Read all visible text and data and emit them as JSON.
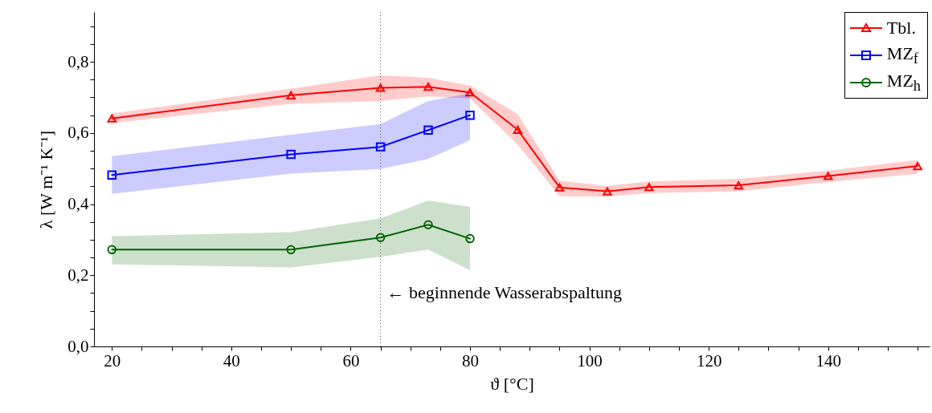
{
  "chart_data": {
    "type": "line",
    "xlabel": "ϑ [°C]",
    "ylabel": "λ [W m⁻¹ K⁻¹]",
    "xlim": [
      17,
      157
    ],
    "ylim": [
      0,
      0.94
    ],
    "xticks": [
      20,
      {
        "value": 25,
        "label": null
      },
      {
        "value": 30,
        "label": null
      },
      {
        "value": 35,
        "label": null
      },
      40,
      {
        "value": 45,
        "label": null
      },
      {
        "value": 50,
        "label": null
      },
      {
        "value": 55,
        "label": null
      },
      60,
      {
        "value": 65,
        "label": null
      },
      {
        "value": 70,
        "label": null
      },
      {
        "value": 75,
        "label": null
      },
      80,
      {
        "value": 85,
        "label": null
      },
      {
        "value": 90,
        "label": null
      },
      {
        "value": 95,
        "label": null
      },
      100,
      {
        "value": 105,
        "label": null
      },
      {
        "value": 110,
        "label": null
      },
      {
        "value": 115,
        "label": null
      },
      120,
      {
        "value": 125,
        "label": null
      },
      {
        "value": 130,
        "label": null
      },
      {
        "value": 135,
        "label": null
      },
      140,
      {
        "value": 145,
        "label": null
      },
      {
        "value": 150,
        "label": null
      },
      {
        "value": 155,
        "label": null
      }
    ],
    "yticks": [
      {
        "value": 0,
        "label": "0,0"
      },
      {
        "value": 0.05,
        "label": null
      },
      {
        "value": 0.1,
        "label": null
      },
      {
        "value": 0.15,
        "label": null
      },
      {
        "value": 0.2,
        "label": "0,2"
      },
      {
        "value": 0.25,
        "label": null
      },
      {
        "value": 0.3,
        "label": null
      },
      {
        "value": 0.35,
        "label": null
      },
      {
        "value": 0.4,
        "label": "0,4"
      },
      {
        "value": 0.45,
        "label": null
      },
      {
        "value": 0.5,
        "label": null
      },
      {
        "value": 0.55,
        "label": null
      },
      {
        "value": 0.6,
        "label": "0,6"
      },
      {
        "value": 0.65,
        "label": null
      },
      {
        "value": 0.7,
        "label": null
      },
      {
        "value": 0.75,
        "label": null
      },
      {
        "value": 0.8,
        "label": "0,8"
      },
      {
        "value": 0.85,
        "label": null
      },
      {
        "value": 0.9,
        "label": null
      }
    ],
    "grid": false,
    "legend": "top right",
    "line_style": "solid",
    "series": [
      {
        "name": "Tbl.",
        "color": "#ff0000",
        "marker": "triangle",
        "x": [
          20,
          50,
          65,
          73,
          80,
          88,
          95,
          103,
          110,
          125,
          140,
          155
        ],
        "values": [
          0.641,
          0.706,
          0.727,
          0.73,
          0.714,
          0.609,
          0.447,
          0.436,
          0.448,
          0.453,
          0.479,
          0.507
        ],
        "lower": [
          0.628,
          0.682,
          0.69,
          0.703,
          0.697,
          0.567,
          0.422,
          0.421,
          0.431,
          0.436,
          0.462,
          0.485
        ],
        "upper": [
          0.655,
          0.725,
          0.762,
          0.755,
          0.733,
          0.653,
          0.466,
          0.451,
          0.464,
          0.471,
          0.494,
          0.524
        ]
      },
      {
        "name": "MZ$_{f}$",
        "color": "#0000ff",
        "marker": "square",
        "x": [
          20,
          50,
          65,
          73,
          80
        ],
        "values": [
          0.482,
          0.54,
          0.561,
          0.608,
          0.65
        ],
        "lower": [
          0.429,
          0.486,
          0.499,
          0.527,
          0.58
        ],
        "upper": [
          0.535,
          0.595,
          0.625,
          0.69,
          0.712
        ]
      },
      {
        "name": "MZ$_{h}$",
        "color": "#006400",
        "marker": "circle",
        "x": [
          20,
          50,
          65,
          73,
          80
        ],
        "values": [
          0.272,
          0.272,
          0.306,
          0.342,
          0.303
        ],
        "lower": [
          0.231,
          0.222,
          0.252,
          0.272,
          0.214
        ],
        "upper": [
          0.31,
          0.321,
          0.36,
          0.41,
          0.392
        ]
      }
    ],
    "ref_lines": [
      {
        "axis": "x",
        "value": 65,
        "label": "← beginnende Wasserabspaltung",
        "line_style": "dotted",
        "color": "#555555"
      }
    ]
  }
}
